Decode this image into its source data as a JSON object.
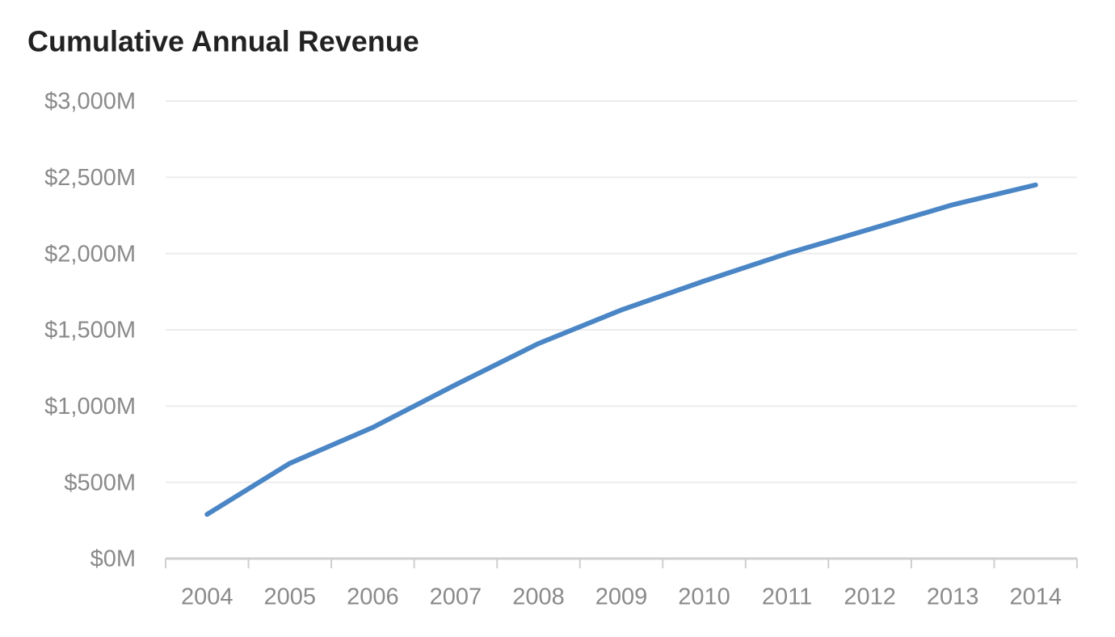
{
  "chart_data": {
    "type": "line",
    "title": "Cumulative Annual Revenue",
    "categories": [
      "2004",
      "2005",
      "2006",
      "2007",
      "2008",
      "2009",
      "2010",
      "2011",
      "2012",
      "2013",
      "2014"
    ],
    "series": [
      {
        "name": "Cumulative Annual Revenue",
        "color": "#4a86c5",
        "values": [
          290,
          625,
          860,
          1140,
          1410,
          1630,
          1820,
          2000,
          2160,
          2320,
          2450
        ]
      }
    ],
    "ylim": [
      0,
      3000
    ],
    "yticks": [
      {
        "value": 0,
        "label": "$0M"
      },
      {
        "value": 500,
        "label": "$500M"
      },
      {
        "value": 1000,
        "label": "$1,000M"
      },
      {
        "value": 1500,
        "label": "$1,500M"
      },
      {
        "value": 2000,
        "label": "$2,000M"
      },
      {
        "value": 2500,
        "label": "$2,500M"
      },
      {
        "value": 3000,
        "label": "$3,000M"
      }
    ],
    "grid": true
  }
}
